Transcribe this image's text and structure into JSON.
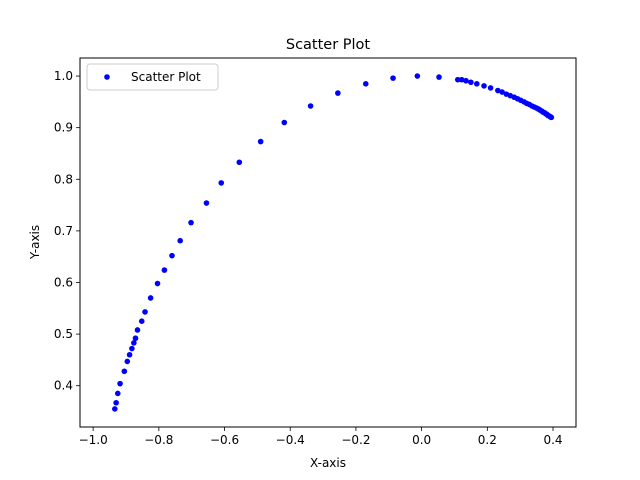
{
  "chart_data": {
    "type": "scatter",
    "title": "Scatter Plot",
    "xlabel": "X-axis",
    "ylabel": "Y-axis",
    "xlim": [
      -1.04,
      0.47
    ],
    "ylim": [
      0.32,
      1.035
    ],
    "xticks": [
      -1.0,
      -0.8,
      -0.6,
      -0.4,
      -0.2,
      0.0,
      0.2,
      0.4
    ],
    "xtick_labels": [
      "−1.0",
      "−0.8",
      "−0.6",
      "−0.4",
      "−0.2",
      "0.0",
      "0.2",
      "0.4"
    ],
    "yticks": [
      0.4,
      0.5,
      0.6,
      0.7,
      0.8,
      0.9,
      1.0
    ],
    "ytick_labels": [
      "0.4",
      "0.5",
      "0.6",
      "0.7",
      "0.8",
      "0.9",
      "1.0"
    ],
    "grid": false,
    "legend_position": "top-left",
    "series": [
      {
        "name": "Scatter Plot",
        "color": "#0000ff",
        "marker": "circle",
        "points": [
          [
            -0.934,
            0.355
          ],
          [
            -0.93,
            0.367
          ],
          [
            -0.925,
            0.385
          ],
          [
            -0.918,
            0.404
          ],
          [
            -0.905,
            0.428
          ],
          [
            -0.896,
            0.447
          ],
          [
            -0.889,
            0.46
          ],
          [
            -0.882,
            0.472
          ],
          [
            -0.876,
            0.483
          ],
          [
            -0.871,
            0.492
          ],
          [
            -0.865,
            0.508
          ],
          [
            -0.852,
            0.525
          ],
          [
            -0.842,
            0.543
          ],
          [
            -0.825,
            0.57
          ],
          [
            -0.804,
            0.598
          ],
          [
            -0.783,
            0.624
          ],
          [
            -0.76,
            0.652
          ],
          [
            -0.735,
            0.681
          ],
          [
            -0.702,
            0.716
          ],
          [
            -0.655,
            0.754
          ],
          [
            -0.61,
            0.793
          ],
          [
            -0.555,
            0.833
          ],
          [
            -0.49,
            0.873
          ],
          [
            -0.418,
            0.91
          ],
          [
            -0.338,
            0.942
          ],
          [
            -0.255,
            0.967
          ],
          [
            -0.17,
            0.985
          ],
          [
            -0.087,
            0.996
          ],
          [
            -0.013,
            1.0
          ],
          [
            0.053,
            0.998
          ],
          [
            0.11,
            0.993
          ],
          [
            0.122,
            0.993
          ],
          [
            0.135,
            0.991
          ],
          [
            0.15,
            0.988
          ],
          [
            0.168,
            0.985
          ],
          [
            0.19,
            0.981
          ],
          [
            0.21,
            0.977
          ],
          [
            0.232,
            0.972
          ],
          [
            0.245,
            0.969
          ],
          [
            0.258,
            0.965
          ],
          [
            0.27,
            0.962
          ],
          [
            0.282,
            0.959
          ],
          [
            0.292,
            0.956
          ],
          [
            0.302,
            0.953
          ],
          [
            0.312,
            0.95
          ],
          [
            0.32,
            0.947
          ],
          [
            0.328,
            0.945
          ],
          [
            0.336,
            0.942
          ],
          [
            0.343,
            0.94
          ],
          [
            0.35,
            0.938
          ],
          [
            0.356,
            0.936
          ],
          [
            0.361,
            0.934
          ],
          [
            0.366,
            0.932
          ],
          [
            0.37,
            0.93
          ],
          [
            0.374,
            0.929
          ],
          [
            0.378,
            0.927
          ],
          [
            0.381,
            0.926
          ],
          [
            0.384,
            0.924
          ],
          [
            0.387,
            0.923
          ],
          [
            0.39,
            0.922
          ],
          [
            0.392,
            0.921
          ],
          [
            0.395,
            0.92
          ]
        ]
      }
    ]
  }
}
